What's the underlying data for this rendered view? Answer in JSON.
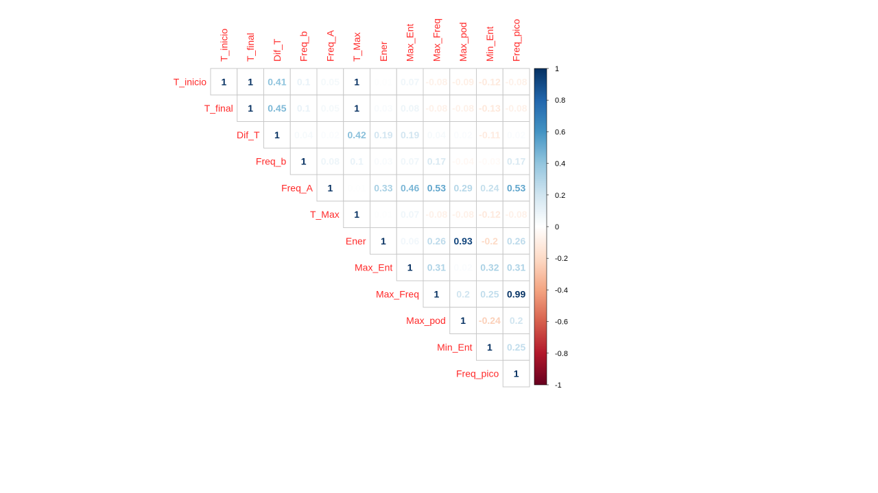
{
  "chart_data": {
    "type": "heatmap",
    "variables": [
      "T_inicio",
      "T_final",
      "Dif_T",
      "Freq_b",
      "Freq_A",
      "T_Max",
      "Ener",
      "Max_Ent",
      "Max_Freq",
      "Max_pod",
      "Min_Ent",
      "Freq_pico"
    ],
    "matrix_upper": [
      [
        1,
        1,
        0.41,
        0.1,
        0.05,
        1,
        0.01,
        0.07,
        -0.08,
        -0.09,
        -0.12,
        -0.08
      ],
      [
        null,
        1,
        0.45,
        0.1,
        0.05,
        1,
        0.03,
        0.08,
        -0.08,
        -0.08,
        -0.13,
        -0.08
      ],
      [
        null,
        null,
        1,
        0.04,
        0.02,
        0.42,
        0.19,
        0.19,
        0.04,
        0.02,
        -0.11,
        0.02
      ],
      [
        null,
        null,
        null,
        1,
        0.08,
        0.1,
        0.03,
        0.07,
        0.17,
        -0.04,
        -0.03,
        0.17
      ],
      [
        null,
        null,
        null,
        null,
        1,
        0.01,
        0.33,
        0.46,
        0.53,
        0.29,
        0.24,
        0.53
      ],
      [
        null,
        null,
        null,
        null,
        null,
        1,
        0.01,
        0.07,
        -0.08,
        -0.08,
        -0.12,
        -0.08
      ],
      [
        null,
        null,
        null,
        null,
        null,
        null,
        1,
        0.06,
        0.26,
        0.93,
        -0.2,
        0.26
      ],
      [
        null,
        null,
        null,
        null,
        null,
        null,
        null,
        1,
        0.31,
        0.02,
        0.32,
        0.31
      ],
      [
        null,
        null,
        null,
        null,
        null,
        null,
        null,
        null,
        1,
        0.2,
        0.25,
        0.99
      ],
      [
        null,
        null,
        null,
        null,
        null,
        null,
        null,
        null,
        null,
        1,
        -0.24,
        0.2
      ],
      [
        null,
        null,
        null,
        null,
        null,
        null,
        null,
        null,
        null,
        null,
        1,
        0.25
      ],
      [
        null,
        null,
        null,
        null,
        null,
        null,
        null,
        null,
        null,
        null,
        null,
        1
      ]
    ],
    "colorbar": {
      "ticks": [
        "1",
        "0.8",
        "0.6",
        "0.4",
        "0.2",
        "0",
        "-0.2",
        "-0.4",
        "-0.6",
        "-0.8",
        "-1"
      ],
      "range": [
        -1,
        1
      ]
    },
    "colors": {
      "positive": "#053061",
      "neutral": "#ffffff",
      "negative": "#67001f",
      "label": "#ff2a2a",
      "grid": "#c8c8c8"
    }
  }
}
